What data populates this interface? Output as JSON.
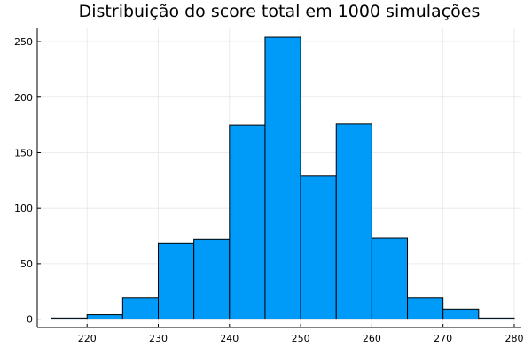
{
  "chart_data": {
    "type": "bar",
    "title": "Distribuição do score total em 1000 simulações",
    "xlabel": "",
    "ylabel": "",
    "bins": [
      {
        "start": 215,
        "end": 220,
        "count": 1
      },
      {
        "start": 220,
        "end": 225,
        "count": 4
      },
      {
        "start": 225,
        "end": 230,
        "count": 19
      },
      {
        "start": 230,
        "end": 235,
        "count": 68
      },
      {
        "start": 235,
        "end": 240,
        "count": 72
      },
      {
        "start": 240,
        "end": 245,
        "count": 175
      },
      {
        "start": 245,
        "end": 250,
        "count": 254
      },
      {
        "start": 250,
        "end": 255,
        "count": 129
      },
      {
        "start": 255,
        "end": 260,
        "count": 176
      },
      {
        "start": 260,
        "end": 265,
        "count": 73
      },
      {
        "start": 265,
        "end": 270,
        "count": 19
      },
      {
        "start": 270,
        "end": 275,
        "count": 9
      },
      {
        "start": 275,
        "end": 280,
        "count": 1
      }
    ],
    "xlim": [
      213,
      281
    ],
    "ylim": [
      -7.5,
      262
    ],
    "xticks": [
      220,
      230,
      240,
      250,
      260,
      270,
      280
    ],
    "yticks": [
      0,
      50,
      100,
      150,
      200,
      250
    ],
    "grid": true,
    "legend": "none",
    "bar_color": "#009af9",
    "edge_color": "#000000"
  }
}
